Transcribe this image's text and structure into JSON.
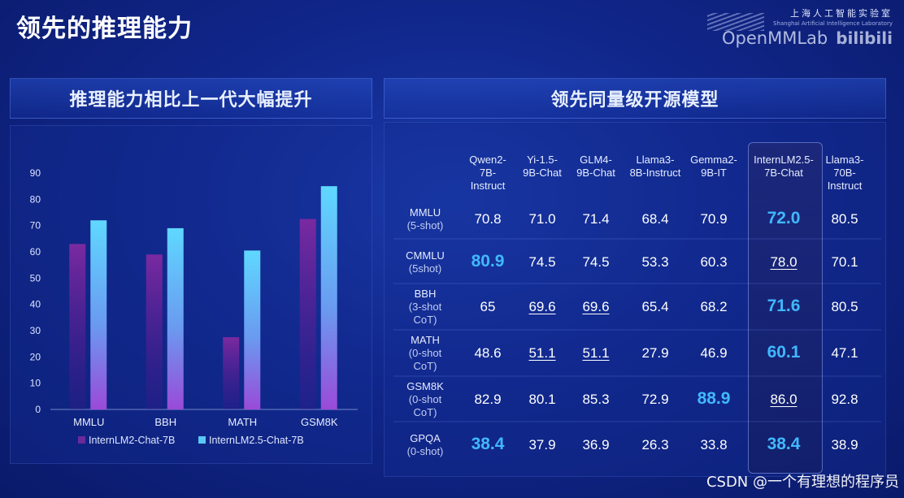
{
  "slide": {
    "title": "领先的推理能力"
  },
  "brand": {
    "lab_name": "上海人工智能实验室",
    "lab_en": "Shanghai Artificial Intelligence Laboratory",
    "openmmlab": "OpenMMLab",
    "bili": "bilibili"
  },
  "left_panel": {
    "header": "推理能力相比上一代大幅提升"
  },
  "right_panel": {
    "header": "领先同量级开源模型"
  },
  "chart_data": {
    "type": "bar",
    "categories": [
      "MMLU",
      "BBH",
      "MATH",
      "GSM8K"
    ],
    "series": [
      {
        "name": "InternLM2-Chat-7B",
        "values": [
          63,
          59,
          27.5,
          72.5
        ],
        "color": "#6a2a9a"
      },
      {
        "name": "InternLM2.5-Chat-7B",
        "values": [
          72,
          69,
          60.5,
          85
        ],
        "color": "#5ac8f5"
      }
    ],
    "ylim": [
      0,
      90
    ],
    "yticks": [
      0,
      10,
      20,
      30,
      40,
      50,
      60,
      70,
      80,
      90
    ],
    "grid": false,
    "legend_position": "bottom"
  },
  "table": {
    "columns": [
      [
        "Qwen2-",
        "7B-",
        "Instruct"
      ],
      [
        "Yi-1.5-",
        "9B-Chat"
      ],
      [
        "GLM4-",
        "9B-Chat"
      ],
      [
        "Llama3-",
        "8B-Instruct"
      ],
      [
        "Gemma2-",
        "9B-IT"
      ],
      [
        "InternLM2.5-",
        "7B-Chat"
      ],
      [
        "Llama3-",
        "70B-",
        "Instruct"
      ]
    ],
    "rows": [
      {
        "label": [
          "MMLU",
          "(5-shot)"
        ],
        "values": [
          "70.8",
          "71.0",
          "71.4",
          "68.4",
          "70.9",
          "72.0",
          "80.5"
        ],
        "best": [
          5
        ],
        "second": []
      },
      {
        "label": [
          "CMMLU",
          "(5shot)"
        ],
        "values": [
          "80.9",
          "74.5",
          "74.5",
          "53.3",
          "60.3",
          "78.0",
          "70.1"
        ],
        "best": [
          0
        ],
        "second": [
          5
        ]
      },
      {
        "label": [
          "BBH",
          "(3-shot",
          "CoT)"
        ],
        "values": [
          "65",
          "69.6",
          "69.6",
          "65.4",
          "68.2",
          "71.6",
          "80.5"
        ],
        "best": [
          5
        ],
        "second": [
          1,
          2
        ]
      },
      {
        "label": [
          "MATH",
          "(0-shot",
          "CoT)"
        ],
        "values": [
          "48.6",
          "51.1",
          "51.1",
          "27.9",
          "46.9",
          "60.1",
          "47.1"
        ],
        "best": [
          5
        ],
        "second": [
          1,
          2
        ]
      },
      {
        "label": [
          "GSM8K",
          "(0-shot",
          "CoT)"
        ],
        "values": [
          "82.9",
          "80.1",
          "85.3",
          "72.9",
          "88.9",
          "86.0",
          "92.8"
        ],
        "best": [
          4
        ],
        "second": [
          5
        ]
      },
      {
        "label": [
          "GPQA",
          "(0-shot)"
        ],
        "values": [
          "38.4",
          "37.9",
          "36.9",
          "26.3",
          "33.8",
          "38.4",
          "38.9"
        ],
        "best": [
          0,
          5
        ],
        "second": []
      }
    ]
  },
  "watermark": "CSDN @一个有理想的程序员"
}
